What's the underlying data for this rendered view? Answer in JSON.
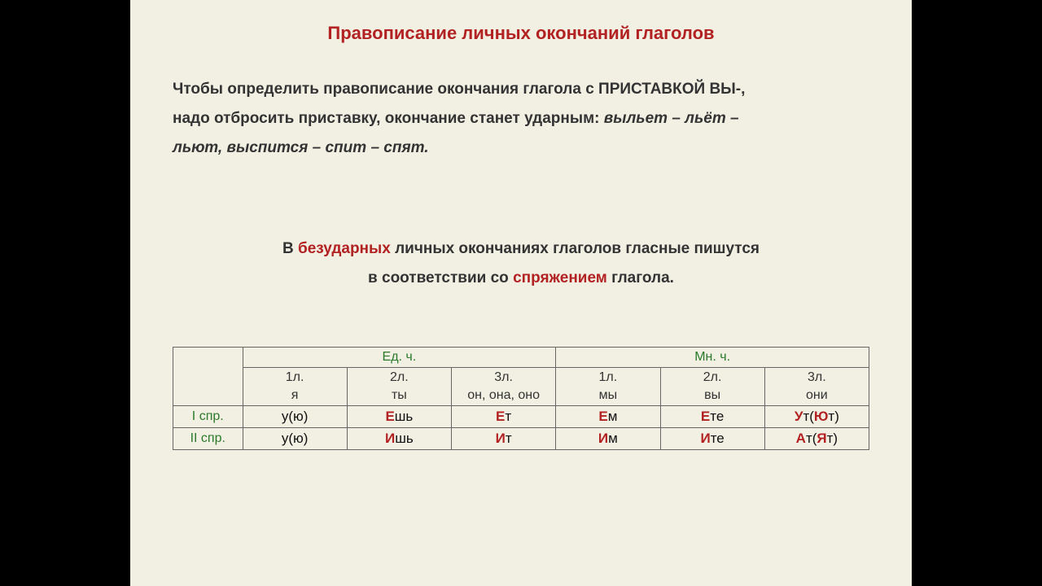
{
  "title": "Правописание личных окончаний глаголов",
  "rule1": {
    "line1a": "Чтобы определить правописание окончания глагола с ПРИСТАВКОЙ ВЫ-,",
    "line2a": "надо отбросить приставку, окончание станет ударным: ",
    "italic1": "вы",
    "italic2": "льет – льёт –",
    "line3italic": "льют, вы",
    "line3italic2": "спится – спит – спят."
  },
  "rule2": {
    "pre": "В ",
    "red1": "безударных",
    "mid1": " личных окончаниях глаголов гласные пишутся",
    "line2a": "в соответствии со ",
    "red2": "спряжением",
    "line2b": " глагола."
  },
  "table": {
    "groups": {
      "sg": "Ед. ч.",
      "pl": "Мн. ч."
    },
    "persons": {
      "p1sg": {
        "num": "1л.",
        "pron": "я"
      },
      "p2sg": {
        "num": "2л.",
        "pron": "ты"
      },
      "p3sg": {
        "num": "3л.",
        "pron": "он, она, оно"
      },
      "p1pl": {
        "num": "1л.",
        "pron": "мы"
      },
      "p2pl": {
        "num": "2л.",
        "pron": "вы"
      },
      "p3pl": {
        "num": "3л.",
        "pron": "они"
      }
    },
    "rows": {
      "r1": {
        "label": "I спр.",
        "c1": {
          "plain": "у(ю)"
        },
        "c2": {
          "hl": "Е",
          "suf": "шь"
        },
        "c3": {
          "hl": "Е",
          "suf": "т"
        },
        "c4": {
          "hl": "Е",
          "suf": "м"
        },
        "c5": {
          "hl": "Е",
          "suf": "те"
        },
        "c6": {
          "hl": "У",
          "suf": "т(",
          "hl2": "Ю",
          "suf2": "т)"
        }
      },
      "r2": {
        "label": "II спр.",
        "c1": {
          "plain": "у(ю)"
        },
        "c2": {
          "hl": "И",
          "suf": "шь"
        },
        "c3": {
          "hl": "И",
          "suf": "т"
        },
        "c4": {
          "hl": "И",
          "suf": "м"
        },
        "c5": {
          "hl": "И",
          "suf": "те"
        },
        "c6": {
          "hl": "А",
          "suf": "т(",
          "hl2": "Я",
          "suf2": "т)"
        }
      }
    }
  },
  "colors": {
    "background": "#f2efe3",
    "title": "#b22222",
    "highlight": "#b22222",
    "green": "#2a7a2a",
    "text": "#333333",
    "border": "#666666"
  },
  "typography": {
    "title_fontsize": 22,
    "body_fontsize": 19,
    "table_fontsize": 17
  }
}
